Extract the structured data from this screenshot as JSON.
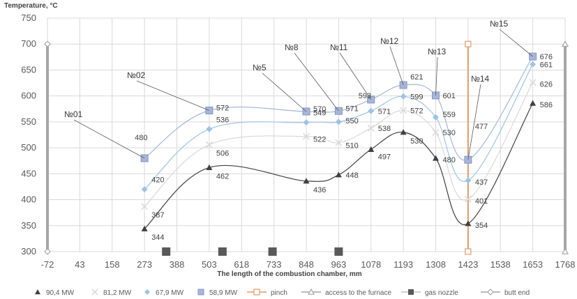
{
  "chart_data": {
    "type": "line",
    "ylabel": "Temperature, °C",
    "xlabel": "The length of the combustion chamber, mm",
    "xlim": [
      -72,
      1768
    ],
    "ylim": [
      300,
      750
    ],
    "x_ticks": [
      "-72",
      "43",
      "158",
      "273",
      "388",
      "503",
      "618",
      "733",
      "848",
      "963",
      "1078",
      "1193",
      "1308",
      "1423",
      "1538",
      "1653",
      "1768"
    ],
    "y_ticks": [
      "300",
      "350",
      "400",
      "450",
      "500",
      "550",
      "600",
      "650",
      "700",
      "750"
    ],
    "grid": true,
    "legend_position": "bottom",
    "series": [
      {
        "name": "90,4 MW",
        "color": "#404040",
        "marker": "triangle",
        "x": [
          273,
          503,
          848,
          963,
          1078,
          1193,
          1308,
          1423,
          1653
        ],
        "values": [
          344,
          462,
          436,
          448,
          497,
          530,
          480,
          354,
          586
        ],
        "labels": [
          "344",
          "462",
          "436",
          "448",
          "497",
          "530",
          "480",
          "354",
          "586"
        ]
      },
      {
        "name": "81,2 MW",
        "color": "#d9d9d9",
        "marker": "x",
        "x": [
          273,
          503,
          848,
          963,
          1078,
          1193,
          1308,
          1423,
          1653
        ],
        "values": [
          387,
          506,
          522,
          510,
          538,
          572,
          530,
          401,
          626
        ],
        "labels": [
          "387",
          "506",
          "522",
          "510",
          "538",
          "572",
          "530",
          "401",
          "626"
        ]
      },
      {
        "name": "67,9 MW",
        "color": "#9dc3e6",
        "marker": "diamond",
        "x": [
          273,
          503,
          848,
          963,
          1078,
          1193,
          1308,
          1423,
          1653
        ],
        "values": [
          420,
          536,
          549,
          550,
          571,
          599,
          559,
          437,
          661
        ],
        "labels": [
          "420",
          "536",
          "549",
          "550",
          "571",
          "599",
          "559",
          "437",
          "661"
        ]
      },
      {
        "name": "58,9 MW",
        "color": "#a6b6d8",
        "marker": "square",
        "x": [
          273,
          503,
          848,
          963,
          1078,
          1193,
          1308,
          1423,
          1653
        ],
        "values": [
          480,
          572,
          570,
          571,
          593,
          621,
          601,
          477,
          676
        ],
        "labels": [
          "480",
          "572",
          "570",
          "571",
          "593",
          "621",
          "601",
          "477",
          "676"
        ]
      },
      {
        "name": "pinch",
        "color": "#e09a66",
        "marker": "open-square",
        "x": [
          1423,
          1423
        ],
        "values": [
          300,
          700
        ]
      },
      {
        "name": "access to the furnace",
        "color": "#a6a6a6",
        "marker": "open-triangle",
        "x": [
          1768,
          1768
        ],
        "values": [
          300,
          700
        ]
      },
      {
        "name": "gas nozzle",
        "color": "#595959",
        "marker": "filled-square",
        "x": [
          350,
          550,
          728,
          963
        ],
        "values": [
          300,
          300,
          300,
          300
        ]
      },
      {
        "name": "butt end",
        "color": "#a6a6a6",
        "marker": "open-diamond",
        "x": [
          -72,
          -72
        ],
        "values": [
          300,
          700
        ]
      }
    ],
    "annotations": [
      {
        "text": "№01",
        "x": 273,
        "y": 480
      },
      {
        "text": "№02",
        "x": 503,
        "y": 572
      },
      {
        "text": "№5",
        "x": 848,
        "y": 570
      },
      {
        "text": "№8",
        "x": 963,
        "y": 571
      },
      {
        "text": "№11",
        "x": 1078,
        "y": 593
      },
      {
        "text": "№12",
        "x": 1193,
        "y": 621
      },
      {
        "text": "№13",
        "x": 1308,
        "y": 601
      },
      {
        "text": "№14",
        "x": 1423,
        "y": 477
      },
      {
        "text": "№15",
        "x": 1653,
        "y": 676
      }
    ]
  }
}
